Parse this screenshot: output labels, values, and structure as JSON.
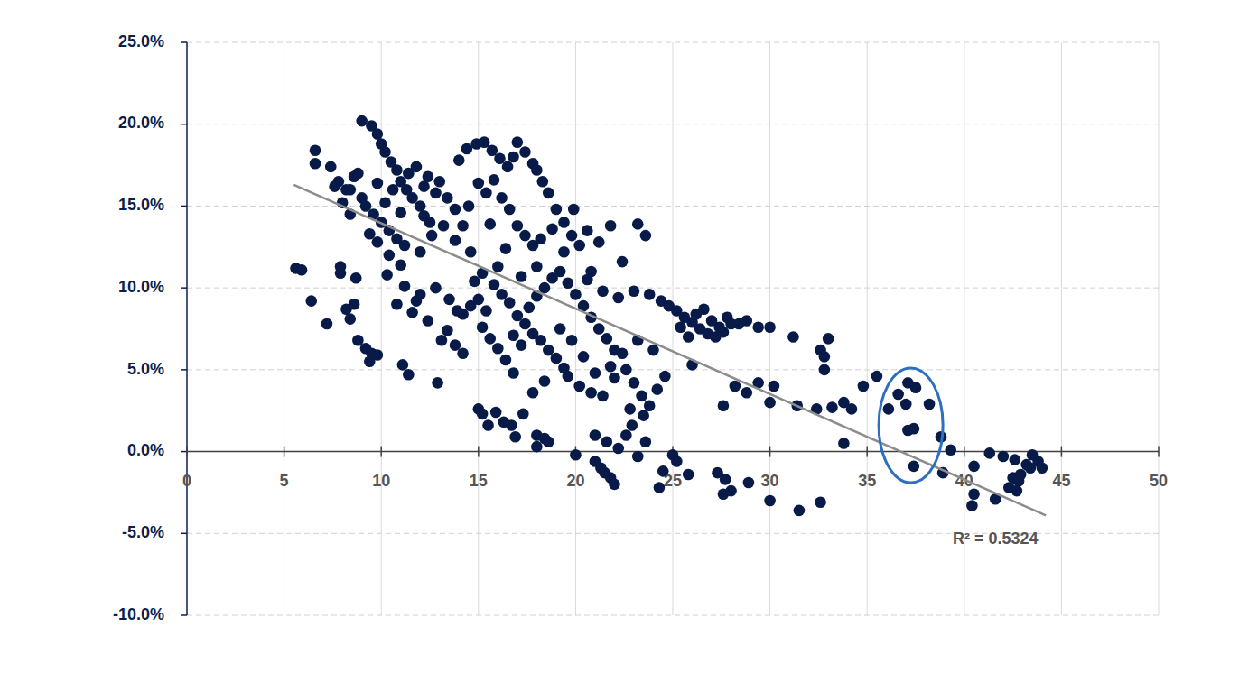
{
  "chart_data": {
    "type": "scatter",
    "grid": true,
    "xlim": [
      0,
      50
    ],
    "xticks": [
      0,
      5,
      10,
      15,
      20,
      25,
      30,
      35,
      40,
      45,
      50
    ],
    "ylim": [
      -10,
      25
    ],
    "yticks": [
      {
        "value": -10,
        "label": "-10.0%"
      },
      {
        "value": -5,
        "label": "-5.0%"
      },
      {
        "value": 0,
        "label": "0.0%"
      },
      {
        "value": 5,
        "label": "5.0%"
      },
      {
        "value": 10,
        "label": "10.0%"
      },
      {
        "value": 15,
        "label": "15.0%"
      },
      {
        "value": 20,
        "label": "20.0%"
      },
      {
        "value": 25,
        "label": "25.0%"
      }
    ],
    "series": [
      {
        "type": "scatter",
        "marker": "circle",
        "color": "#071a48",
        "x": [
          6.6,
          6.6,
          7.4,
          7.8,
          8.2,
          8.6,
          9.0,
          9.0,
          9.5,
          9.8,
          10.0,
          10.2,
          10.5,
          10.8,
          11.0,
          11.3,
          11.6,
          12.0,
          12.2,
          12.5,
          9.2,
          9.6,
          10.0,
          10.4,
          10.8,
          11.2,
          9.4,
          8.4,
          8.0,
          7.6,
          12.8,
          12.4,
          11.8,
          11.4,
          13.0,
          13.4,
          10.6,
          9.8,
          10.2,
          11.0,
          8.8,
          12.6,
          12.0,
          11.0,
          10.4,
          9.8,
          13.2,
          13.8,
          12.2,
          8.4,
          5.6,
          5.9,
          6.4,
          7.2,
          7.9,
          7.9,
          8.2,
          8.4,
          8.6,
          8.7,
          8.8,
          9.2,
          9.4,
          9.5,
          9.8,
          10.3,
          10.8,
          11.1,
          11.4,
          11.6,
          12.0,
          12.4,
          12.9,
          13.1,
          13.4,
          13.8,
          14.2,
          12.8,
          11.8,
          11.2,
          14.0,
          14.4,
          14.9,
          15.3,
          15.7,
          16.1,
          16.5,
          16.8,
          17.0,
          17.4,
          17.8,
          18.0,
          18.3,
          18.6,
          19.0,
          19.4,
          15.0,
          15.4,
          15.8,
          16.2,
          16.6,
          17.0,
          17.4,
          17.8,
          18.2,
          14.5,
          14.2,
          13.8,
          14.6,
          15.6,
          16.4,
          18.8,
          19.8,
          20.2,
          20.6,
          21.2,
          21.8,
          23.2,
          23.6,
          19.9,
          22.4,
          20.8,
          14.2,
          14.6,
          15.0,
          15.4,
          15.8,
          16.2,
          16.6,
          17.0,
          17.4,
          17.8,
          18.2,
          18.6,
          19.0,
          19.4,
          15.2,
          15.6,
          16.0,
          16.4,
          16.8,
          17.2,
          17.6,
          18.0,
          18.4,
          18.8,
          19.2,
          19.6,
          20.0,
          20.4,
          20.8,
          21.2,
          21.6,
          22.0,
          14.8,
          15.2,
          16.0,
          17.2,
          18.0,
          19.4,
          20.6,
          21.4,
          22.2,
          23.0,
          23.8,
          24.4,
          13.5,
          13.9,
          16.8,
          17.8,
          18.4,
          19.6,
          20.2,
          20.8,
          21.4,
          22.0,
          22.6,
          23.0,
          23.4,
          23.8,
          24.2,
          24.6,
          21.8,
          22.4,
          23.2,
          24.0,
          21.0,
          20.4,
          19.8,
          19.2,
          22.8,
          23.5,
          24.8,
          25.2,
          25.6,
          26.0,
          26.4,
          26.8,
          27.2,
          27.6,
          28.0,
          25.4,
          25.8,
          26.2,
          26.6,
          27.0,
          27.4,
          27.8,
          28.4,
          28.8,
          29.4,
          30.0,
          31.2,
          32.6,
          33.0,
          32.8,
          32.8,
          26.0,
          27.6,
          28.2,
          28.8,
          29.4,
          30.0,
          30.2,
          31.4,
          32.4,
          33.2,
          33.8,
          34.2,
          34.8,
          35.5,
          33.8,
          15.0,
          15.2,
          15.5,
          15.9,
          16.3,
          16.7,
          16.9,
          17.3,
          18.0,
          18.0,
          18.4,
          18.6,
          20.0,
          21.0,
          21.0,
          21.3,
          21.5,
          21.8,
          22.0,
          21.6,
          22.2,
          22.6,
          22.9,
          23.2,
          23.6,
          24.3,
          24.5,
          25.0,
          25.2,
          25.8,
          27.3,
          27.7,
          27.6,
          28.0,
          28.9,
          30.0,
          31.5,
          32.6,
          36.1,
          36.6,
          37.0,
          37.1,
          37.5,
          37.1,
          37.4,
          37.4,
          38.2,
          38.8,
          39.3,
          38.9,
          40.5,
          40.4,
          40.5,
          41.3,
          41.6,
          42.0,
          42.3,
          42.5,
          42.7,
          42.9,
          42.8,
          43.2,
          43.5,
          43.4,
          43.8,
          44.0,
          42.6
        ],
        "values": [
          18.4,
          17.6,
          17.4,
          16.5,
          16.0,
          16.8,
          15.5,
          20.2,
          19.9,
          19.4,
          18.8,
          18.3,
          17.7,
          17.2,
          16.5,
          16.0,
          15.5,
          15.0,
          14.4,
          14.0,
          15.0,
          14.5,
          14.0,
          13.5,
          13.0,
          12.6,
          13.3,
          14.5,
          15.2,
          16.2,
          15.8,
          16.8,
          17.4,
          17.0,
          16.5,
          15.5,
          16.0,
          16.4,
          15.2,
          14.6,
          17.0,
          13.2,
          12.2,
          11.4,
          12.0,
          12.8,
          13.8,
          14.8,
          16.2,
          16.0,
          11.2,
          11.1,
          9.2,
          7.8,
          11.3,
          10.9,
          8.7,
          8.1,
          9.0,
          10.6,
          6.8,
          6.3,
          5.5,
          6.0,
          5.9,
          10.8,
          9.0,
          5.3,
          4.7,
          8.5,
          9.6,
          8.0,
          4.2,
          6.8,
          7.4,
          6.5,
          6.0,
          10.0,
          9.2,
          10.1,
          17.8,
          18.5,
          18.8,
          18.9,
          18.4,
          17.9,
          17.4,
          18.0,
          18.9,
          18.3,
          17.6,
          17.2,
          16.5,
          15.8,
          14.8,
          14.0,
          16.4,
          15.8,
          16.6,
          15.5,
          14.8,
          13.8,
          13.2,
          12.6,
          13.0,
          15.0,
          13.8,
          12.9,
          12.2,
          13.9,
          12.4,
          13.6,
          13.2,
          12.6,
          13.5,
          12.8,
          13.8,
          13.9,
          13.2,
          14.8,
          11.6,
          11.0,
          8.4,
          8.9,
          9.3,
          8.6,
          10.2,
          9.6,
          9.1,
          8.3,
          7.8,
          7.2,
          6.8,
          6.2,
          5.7,
          5.1,
          7.6,
          6.9,
          6.3,
          5.6,
          7.1,
          6.5,
          8.8,
          9.5,
          10.0,
          10.6,
          11.0,
          10.3,
          9.6,
          8.9,
          8.2,
          7.5,
          6.9,
          6.2,
          10.4,
          10.9,
          11.3,
          10.7,
          11.3,
          12.2,
          10.5,
          9.8,
          9.4,
          9.8,
          9.6,
          9.2,
          9.3,
          8.6,
          4.8,
          3.6,
          4.3,
          4.6,
          4.0,
          3.6,
          3.4,
          4.5,
          5.0,
          4.2,
          3.4,
          2.8,
          3.8,
          4.6,
          5.2,
          6.0,
          6.8,
          6.2,
          4.8,
          5.8,
          6.8,
          7.5,
          2.6,
          2.2,
          8.9,
          8.6,
          8.2,
          7.9,
          7.5,
          7.2,
          7.0,
          7.3,
          7.8,
          7.6,
          7.0,
          8.4,
          8.7,
          8.0,
          7.6,
          8.2,
          7.8,
          8.0,
          7.6,
          7.6,
          7.0,
          6.2,
          6.9,
          5.8,
          5.0,
          5.3,
          2.8,
          4.0,
          3.6,
          4.2,
          3.0,
          4.0,
          2.8,
          2.6,
          2.7,
          3.0,
          2.6,
          4.0,
          4.6,
          0.5,
          2.6,
          2.3,
          1.6,
          2.4,
          1.8,
          1.6,
          0.9,
          2.3,
          1.0,
          0.3,
          0.8,
          0.6,
          -0.2,
          1.0,
          -0.6,
          -1.0,
          -1.3,
          -1.6,
          -2.0,
          0.6,
          0.2,
          1.0,
          1.6,
          -0.3,
          0.6,
          -2.2,
          -1.2,
          -0.2,
          -0.6,
          -1.4,
          -1.3,
          -1.7,
          -2.6,
          -2.4,
          -1.9,
          -3.0,
          -3.6,
          -3.1,
          2.6,
          3.5,
          2.9,
          4.2,
          3.9,
          1.3,
          1.4,
          -0.9,
          2.9,
          0.9,
          0.1,
          -1.3,
          -0.9,
          -3.3,
          -2.6,
          -0.1,
          -2.9,
          -0.3,
          -2.2,
          -1.6,
          -2.4,
          -1.4,
          -1.8,
          -0.8,
          -0.2,
          -1.0,
          -0.6,
          -1.0,
          -0.5
        ]
      },
      {
        "type": "line",
        "line_style": "solid",
        "color": "#8c8c8c",
        "x": [
          5.5,
          44.2
        ],
        "values": [
          16.3,
          -3.9
        ]
      }
    ],
    "annotations": [
      {
        "text": "R² = 0.5324",
        "x": 41.6,
        "y": -5.4
      },
      {
        "shape": "ellipse",
        "x": [
          35.6,
          38.9
        ],
        "y": [
          -1.9,
          5.1
        ],
        "color": "#2e6fc0"
      }
    ]
  }
}
